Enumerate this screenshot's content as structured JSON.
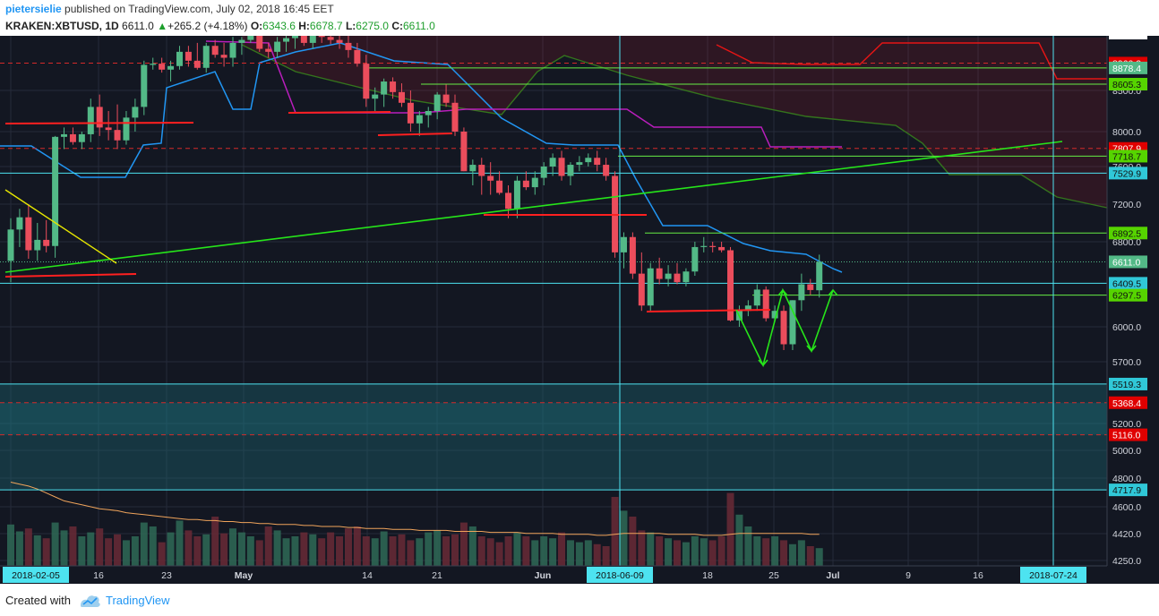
{
  "header": {
    "author": "pietersielie",
    "published_text": "published on TradingView.com, July 02, 2018 16:45 EET",
    "symbol": "KRAKEN:XBTUSD, 1D",
    "last": "6611.0",
    "change_arrow": "▲",
    "change": "+265.2 (+4.18%)",
    "o_label": "O:",
    "o_value": "6343.6",
    "h_label": "H:",
    "h_value": "6678.7",
    "l_label": "L:",
    "l_value": "6275.0",
    "c_label": "C:",
    "c_value": "6611.0"
  },
  "footer": {
    "created_with": "Created with",
    "brand": "TradingView"
  },
  "colors": {
    "background": "#131722",
    "up": "#53b987",
    "down": "#eb4d5c",
    "kijun_blue": "#2196f3",
    "purple": "#b91ebc",
    "trend_green": "#26e51a",
    "yellow_line": "#e6e600",
    "red_line": "#ff2020",
    "cyan_line": "#4de3f0",
    "span_b_red": "#e51515",
    "span_a_green": "#34741d",
    "volume_ma": "#f0a45b"
  },
  "chart_data": {
    "type": "candlestick",
    "symbol": "KRAKEN:XBTUSD",
    "interval": "1D",
    "x_axis_labels": [
      "2018-02-05",
      "16",
      "23",
      "May",
      "14",
      "21",
      "Jun",
      "2018-06-09",
      "18",
      "25",
      "Jul",
      "9",
      "16",
      "2018-07-24"
    ],
    "y_axis_ticks": [
      8500.0,
      8000.0,
      7600.0,
      7200.0,
      6800.0,
      6000.0,
      5700.0,
      5200.0,
      5000.0,
      4800.0,
      4600.0,
      4420.0,
      4250.0
    ],
    "price_labels": [
      {
        "value": "8960.3",
        "color": "#e00000"
      },
      {
        "value": "8878.4",
        "color": "#53b987"
      },
      {
        "value": "8605.3",
        "color": "#56d400"
      },
      {
        "value": "7807.9",
        "color": "#e00000"
      },
      {
        "value": "7718.7",
        "color": "#56d400"
      },
      {
        "value": "7529.9",
        "color": "#30c8d8"
      },
      {
        "value": "6892.5",
        "color": "#56d400"
      },
      {
        "value": "6611.0",
        "color": "#53b987"
      },
      {
        "value": "6409.5",
        "color": "#30c8d8"
      },
      {
        "value": "6297.5",
        "color": "#56d400"
      },
      {
        "value": "5519.3",
        "color": "#30c8d8"
      },
      {
        "value": "5368.4",
        "color": "#e00000"
      },
      {
        "value": "5116.0",
        "color": "#e00000"
      },
      {
        "value": "4717.9",
        "color": "#30c8d8"
      }
    ],
    "candles": [
      {
        "o": 6620,
        "h": 7050,
        "l": 6420,
        "c": 6930
      },
      {
        "o": 6930,
        "h": 7150,
        "l": 6750,
        "c": 7060
      },
      {
        "o": 7060,
        "h": 7200,
        "l": 6640,
        "c": 6720
      },
      {
        "o": 6720,
        "h": 7000,
        "l": 6620,
        "c": 6820
      },
      {
        "o": 6820,
        "h": 7030,
        "l": 6700,
        "c": 6760
      },
      {
        "o": 6760,
        "h": 7950,
        "l": 6650,
        "c": 7940
      },
      {
        "o": 7940,
        "h": 8050,
        "l": 7800,
        "c": 7970
      },
      {
        "o": 7970,
        "h": 8050,
        "l": 7850,
        "c": 7880
      },
      {
        "o": 7880,
        "h": 8000,
        "l": 7800,
        "c": 7970
      },
      {
        "o": 7970,
        "h": 8400,
        "l": 7880,
        "c": 8300
      },
      {
        "o": 8300,
        "h": 8450,
        "l": 7950,
        "c": 8050
      },
      {
        "o": 8050,
        "h": 8250,
        "l": 7900,
        "c": 8020
      },
      {
        "o": 8020,
        "h": 8330,
        "l": 7800,
        "c": 7900
      },
      {
        "o": 7900,
        "h": 8250,
        "l": 7850,
        "c": 8170
      },
      {
        "o": 8170,
        "h": 8400,
        "l": 8000,
        "c": 8300
      },
      {
        "o": 8300,
        "h": 9000,
        "l": 8200,
        "c": 8930
      },
      {
        "o": 8930,
        "h": 9050,
        "l": 8850,
        "c": 8950
      },
      {
        "o": 8950,
        "h": 9050,
        "l": 8800,
        "c": 8850
      },
      {
        "o": 8850,
        "h": 9000,
        "l": 8650,
        "c": 8910
      },
      {
        "o": 8910,
        "h": 9250,
        "l": 8850,
        "c": 9150
      },
      {
        "o": 9150,
        "h": 9250,
        "l": 8900,
        "c": 9000
      },
      {
        "o": 9000,
        "h": 9300,
        "l": 8850,
        "c": 8880
      },
      {
        "o": 8880,
        "h": 9300,
        "l": 8800,
        "c": 9250
      },
      {
        "o": 9250,
        "h": 9350,
        "l": 9050,
        "c": 9100
      },
      {
        "o": 9100,
        "h": 9300,
        "l": 8900,
        "c": 9050
      },
      {
        "o": 9050,
        "h": 9400,
        "l": 8900,
        "c": 9300
      },
      {
        "o": 9300,
        "h": 9400,
        "l": 9100,
        "c": 9350
      },
      {
        "o": 9350,
        "h": 9500,
        "l": 9300,
        "c": 9450
      },
      {
        "o": 9450,
        "h": 9500,
        "l": 9150,
        "c": 9200
      },
      {
        "o": 9200,
        "h": 9300,
        "l": 9050,
        "c": 9150
      },
      {
        "o": 9150,
        "h": 9400,
        "l": 9050,
        "c": 9320
      },
      {
        "o": 9320,
        "h": 9450,
        "l": 9150,
        "c": 9380
      },
      {
        "o": 9380,
        "h": 9500,
        "l": 9200,
        "c": 9420
      },
      {
        "o": 9420,
        "h": 9480,
        "l": 9250,
        "c": 9300
      },
      {
        "o": 9300,
        "h": 9500,
        "l": 9200,
        "c": 9430
      },
      {
        "o": 9430,
        "h": 9500,
        "l": 9300,
        "c": 9400
      },
      {
        "o": 9400,
        "h": 9480,
        "l": 9280,
        "c": 9350
      },
      {
        "o": 9350,
        "h": 9500,
        "l": 9200,
        "c": 9300
      },
      {
        "o": 9300,
        "h": 9450,
        "l": 9050,
        "c": 9180
      },
      {
        "o": 9180,
        "h": 9300,
        "l": 8900,
        "c": 8950
      },
      {
        "o": 8950,
        "h": 9100,
        "l": 8300,
        "c": 8400
      },
      {
        "o": 8400,
        "h": 8550,
        "l": 8250,
        "c": 8450
      },
      {
        "o": 8450,
        "h": 8700,
        "l": 8300,
        "c": 8650
      },
      {
        "o": 8650,
        "h": 8720,
        "l": 8400,
        "c": 8480
      },
      {
        "o": 8480,
        "h": 8620,
        "l": 8300,
        "c": 8350
      },
      {
        "o": 8350,
        "h": 8500,
        "l": 8000,
        "c": 8100
      },
      {
        "o": 8100,
        "h": 8250,
        "l": 7950,
        "c": 8200
      },
      {
        "o": 8200,
        "h": 8300,
        "l": 8050,
        "c": 8250
      },
      {
        "o": 8250,
        "h": 8480,
        "l": 8150,
        "c": 8450
      },
      {
        "o": 8450,
        "h": 8600,
        "l": 8300,
        "c": 8350
      },
      {
        "o": 8350,
        "h": 8450,
        "l": 7950,
        "c": 8000
      },
      {
        "o": 8000,
        "h": 8050,
        "l": 7550,
        "c": 7550
      },
      {
        "o": 7550,
        "h": 7680,
        "l": 7400,
        "c": 7620
      },
      {
        "o": 7620,
        "h": 7700,
        "l": 7300,
        "c": 7500
      },
      {
        "o": 7500,
        "h": 7650,
        "l": 7300,
        "c": 7450
      },
      {
        "o": 7450,
        "h": 7550,
        "l": 7300,
        "c": 7320
      },
      {
        "o": 7320,
        "h": 7400,
        "l": 7050,
        "c": 7150
      },
      {
        "o": 7150,
        "h": 7500,
        "l": 7050,
        "c": 7450
      },
      {
        "o": 7450,
        "h": 7550,
        "l": 7350,
        "c": 7380
      },
      {
        "o": 7380,
        "h": 7550,
        "l": 7300,
        "c": 7480
      },
      {
        "o": 7480,
        "h": 7650,
        "l": 7400,
        "c": 7600
      },
      {
        "o": 7600,
        "h": 7750,
        "l": 7500,
        "c": 7700
      },
      {
        "o": 7700,
        "h": 7780,
        "l": 7450,
        "c": 7500
      },
      {
        "o": 7500,
        "h": 7650,
        "l": 7400,
        "c": 7620
      },
      {
        "o": 7620,
        "h": 7720,
        "l": 7550,
        "c": 7650
      },
      {
        "o": 7650,
        "h": 7750,
        "l": 7600,
        "c": 7700
      },
      {
        "o": 7700,
        "h": 7780,
        "l": 7550,
        "c": 7620
      },
      {
        "o": 7620,
        "h": 7700,
        "l": 7450,
        "c": 7500
      },
      {
        "o": 7500,
        "h": 7550,
        "l": 6650,
        "c": 6700
      },
      {
        "o": 6700,
        "h": 6900,
        "l": 6550,
        "c": 6850
      },
      {
        "o": 6850,
        "h": 6900,
        "l": 6450,
        "c": 6500
      },
      {
        "o": 6500,
        "h": 6700,
        "l": 6150,
        "c": 6200
      },
      {
        "o": 6200,
        "h": 6600,
        "l": 6150,
        "c": 6550
      },
      {
        "o": 6550,
        "h": 6650,
        "l": 6400,
        "c": 6450
      },
      {
        "o": 6450,
        "h": 6580,
        "l": 6380,
        "c": 6500
      },
      {
        "o": 6500,
        "h": 6600,
        "l": 6400,
        "c": 6420
      },
      {
        "o": 6420,
        "h": 6550,
        "l": 6380,
        "c": 6520
      },
      {
        "o": 6520,
        "h": 6800,
        "l": 6480,
        "c": 6750
      },
      {
        "o": 6750,
        "h": 6850,
        "l": 6700,
        "c": 6760
      },
      {
        "o": 6760,
        "h": 6800,
        "l": 6700,
        "c": 6750
      },
      {
        "o": 6750,
        "h": 6800,
        "l": 6700,
        "c": 6720
      },
      {
        "o": 6720,
        "h": 6750,
        "l": 6050,
        "c": 6060
      },
      {
        "o": 6060,
        "h": 6200,
        "l": 6000,
        "c": 6150
      },
      {
        "o": 6150,
        "h": 6250,
        "l": 6100,
        "c": 6200
      },
      {
        "o": 6200,
        "h": 6400,
        "l": 6150,
        "c": 6350
      },
      {
        "o": 6350,
        "h": 6380,
        "l": 6050,
        "c": 6080
      },
      {
        "o": 6080,
        "h": 6200,
        "l": 6050,
        "c": 6150
      },
      {
        "o": 6150,
        "h": 6200,
        "l": 5800,
        "c": 5850
      },
      {
        "o": 5850,
        "h": 6250,
        "l": 5800,
        "c": 6250
      },
      {
        "o": 6250,
        "h": 6500,
        "l": 6150,
        "c": 6400
      },
      {
        "o": 6400,
        "h": 6450,
        "l": 6300,
        "c": 6346
      },
      {
        "o": 6343.6,
        "h": 6678.7,
        "l": 6275.0,
        "c": 6611.0
      }
    ],
    "volume": [
      42,
      35,
      38,
      31,
      28,
      44,
      36,
      40,
      30,
      34,
      38,
      28,
      32,
      26,
      30,
      44,
      40,
      24,
      34,
      46,
      36,
      30,
      32,
      50,
      33,
      38,
      34,
      30,
      26,
      40,
      36,
      28,
      30,
      34,
      32,
      28,
      34,
      30,
      38,
      40,
      30,
      28,
      35,
      30,
      32,
      26,
      28,
      34,
      36,
      30,
      32,
      44,
      40,
      30,
      28,
      24,
      30,
      34,
      30,
      26,
      30,
      28,
      34,
      26,
      24,
      26,
      22,
      20,
      70,
      56,
      50,
      36,
      34,
      30,
      28,
      26,
      24,
      30,
      28,
      26,
      30,
      74,
      52,
      40,
      30,
      28,
      30,
      26,
      22,
      26,
      20,
      18
    ],
    "volume_ma": [
      85,
      83,
      81,
      78,
      74,
      70,
      66,
      64,
      62,
      60,
      58,
      57,
      56,
      54,
      53,
      52,
      51,
      50,
      49,
      48,
      47,
      47,
      46,
      46,
      45,
      45,
      44,
      44,
      43,
      43,
      42,
      42,
      42,
      41,
      41,
      40,
      40,
      40,
      39,
      39,
      38,
      38,
      38,
      37,
      37,
      37,
      36,
      36,
      36,
      36,
      35,
      35,
      35,
      35,
      34,
      34,
      34,
      34,
      33,
      33,
      33,
      33,
      32,
      32,
      32,
      32,
      31,
      31,
      32,
      33,
      33,
      33,
      33,
      33,
      32,
      32,
      32,
      32,
      31,
      31,
      31,
      32,
      33,
      33,
      33,
      33,
      33,
      33,
      33,
      33,
      32,
      32
    ]
  }
}
